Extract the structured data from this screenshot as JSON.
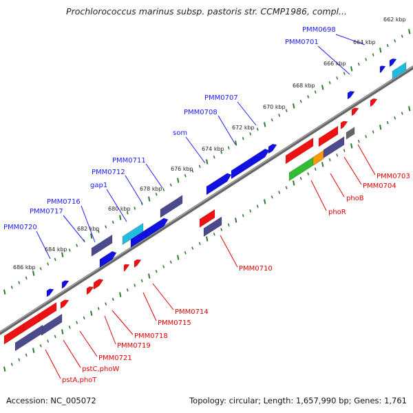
{
  "title": "Prochlorococcus marinus subsp. pastoris str. CCMP1986, compl...",
  "footer": {
    "accession": "Accession: NC_005072",
    "info": "Topology: circular; Length: 1,657,990 bp; Genes: 1,761"
  },
  "ticks": [
    "662 kbp",
    "664 kbp",
    "666 kbp",
    "668 kbp",
    "670 kbp",
    "672 kbp",
    "674 kbp",
    "676 kbp",
    "678 kbp",
    "680 kbp",
    "682 kbp",
    "684 kbp",
    "686 kbp"
  ],
  "upper_labels": [
    "PMM0698",
    "PMM0701",
    "PMM0707",
    "PMM0708",
    "som",
    "PMM0711",
    "PMM0712",
    "gap1",
    "PMM0716",
    "PMM0717",
    "PMM0720"
  ],
  "lower_labels": [
    "PMM0703",
    "PMM0704",
    "phoB",
    "phoR",
    "PMM0710",
    "PMM0714",
    "PMM0715",
    "PMM0718",
    "PMM0719",
    "PMM0721",
    "pstC,phoW",
    "pstA,phoT"
  ],
  "colors": {
    "forward_gene": "#1010e0",
    "reverse_gene": "#ee1111",
    "forward_label": "#1a1aff",
    "reverse_label": "#e00000",
    "cds_neutral": "#4a4a8c",
    "cds_light": "#22bbdd",
    "green_gene": "#33bb33",
    "orange_gene": "#ff9900",
    "backbone": "#777777",
    "tick": "#2a7a2a"
  }
}
